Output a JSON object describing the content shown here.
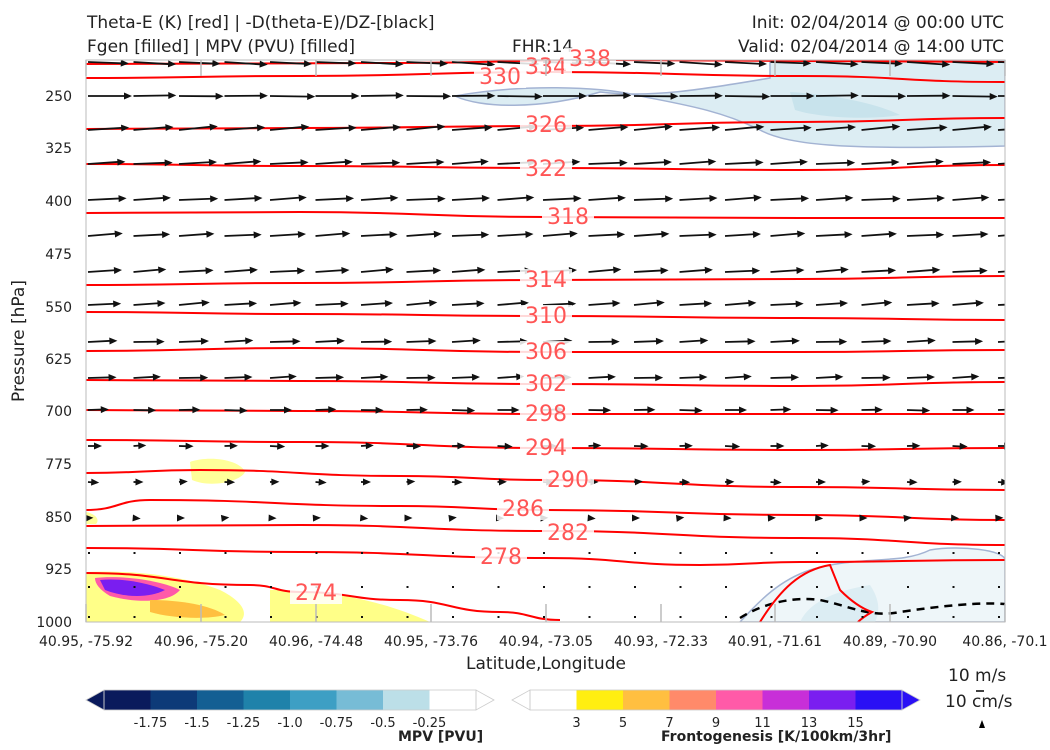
{
  "header": {
    "title_left_1": "Theta-E (K) [red] | -D(theta-E)/DZ-[black]",
    "title_left_2": "Fgen [filled] | MPV (PVU) [filled]",
    "fhr": "FHR:14",
    "init": "Init: 02/04/2014 @ 00:00 UTC",
    "valid": "Valid: 02/04/2014 @ 14:00 UTC"
  },
  "chart_data": {
    "type": "cross-section",
    "ylabel": "Pressure [hPa]",
    "xlabel": "Latitude,Longitude",
    "y_ticks": [
      "250",
      "325",
      "400",
      "475",
      "550",
      "625",
      "700",
      "775",
      "850",
      "925",
      "1000"
    ],
    "x_ticks": [
      "40.95, -75.92",
      "40.96, -75.20",
      "40.96, -74.48",
      "40.95, -73.76",
      "40.94, -73.05",
      "40.93, -72.33",
      "40.91, -71.61",
      "40.89, -70.90",
      "40.86, -70.1"
    ],
    "theta_e_labels": [
      "330",
      "334",
      "338",
      "326",
      "322",
      "318",
      "314",
      "310",
      "306",
      "302",
      "298",
      "294",
      "290",
      "286",
      "282",
      "278",
      "274"
    ],
    "colors": {
      "theta_e": "#ff0000",
      "label": "#ff5555",
      "wind": "#111111"
    }
  },
  "wind_key": {
    "u_label": "10 m/s",
    "w_label": "10 cm/s"
  },
  "colorbars": {
    "mpv": {
      "title": "MPV [PVU]",
      "labels": [
        "-1.75",
        "-1.5",
        "-1.25",
        "-1.0",
        "-0.75",
        "-0.5",
        "-0.25"
      ],
      "colors": [
        "#0a1a5c",
        "#0d3a78",
        "#135f93",
        "#1f82aa",
        "#3d9fc4",
        "#77bcd6",
        "#bcdfe8",
        "#ffffff"
      ]
    },
    "fgen": {
      "title": "Frontogenesis [K/100km/3hr]",
      "labels": [
        "3",
        "5",
        "7",
        "9",
        "11",
        "13",
        "15"
      ],
      "colors": [
        "#ffffff",
        "#ffee11",
        "#ffbf40",
        "#ff8a6a",
        "#ff5aa8",
        "#c82fd8",
        "#7a1ef0",
        "#2a10f5"
      ]
    }
  }
}
